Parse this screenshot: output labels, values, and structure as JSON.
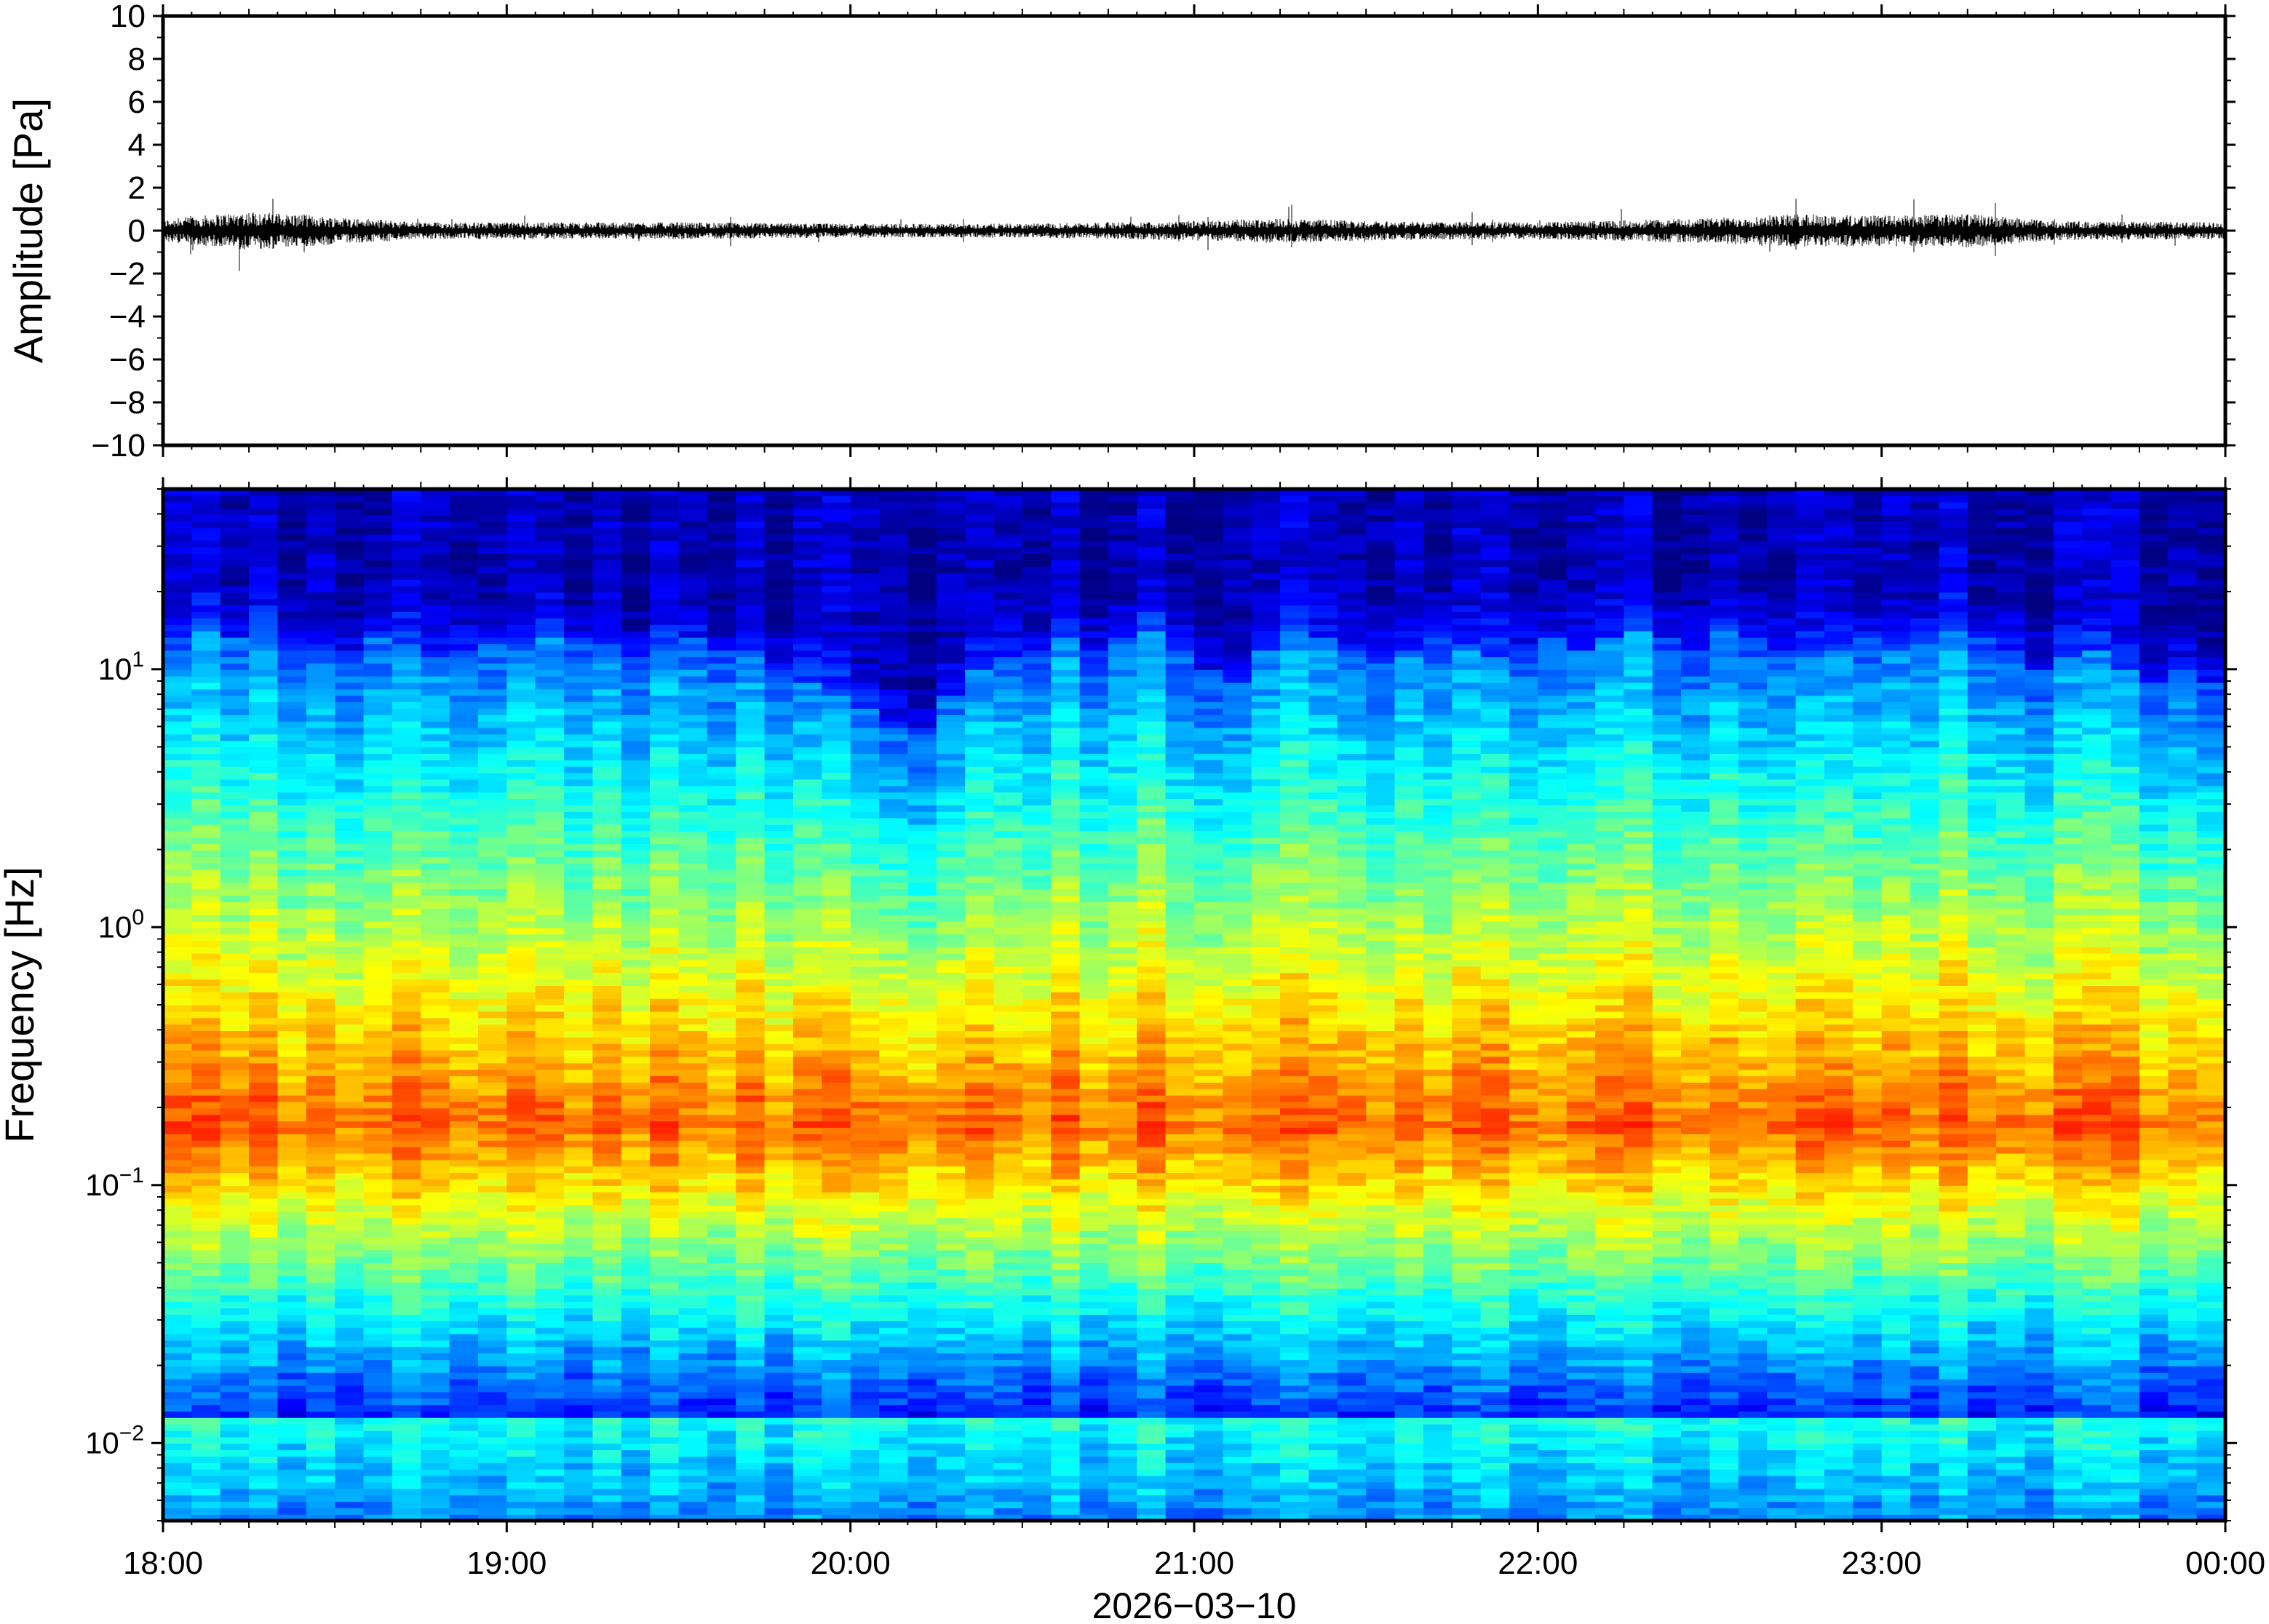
{
  "chart_data": [
    {
      "type": "line",
      "title": "",
      "ylabel": "Amplitude [Pa]",
      "xlabel": "",
      "ylim": [
        -10,
        10
      ],
      "yticks": [
        10,
        8,
        6,
        4,
        2,
        0,
        -2,
        -4,
        -6,
        -8,
        -10
      ],
      "ytick_labels": [
        "10",
        "8",
        "6",
        "4",
        "2",
        "0",
        "−2",
        "−4",
        "−6",
        "−8",
        "−10"
      ],
      "xlim": [
        "18:00",
        "00:00"
      ],
      "grid": false,
      "series": [
        {
          "color": "#000000",
          "x": [
            "18:00",
            "18:15",
            "18:30",
            "18:45",
            "19:00",
            "19:30",
            "20:00",
            "20:30",
            "21:00",
            "21:15",
            "21:30",
            "22:00",
            "22:30",
            "22:45",
            "23:00",
            "23:15",
            "23:30",
            "00:00"
          ],
          "envelope": [
            0.4,
            0.7,
            0.5,
            0.3,
            0.3,
            0.3,
            0.25,
            0.25,
            0.35,
            0.45,
            0.35,
            0.3,
            0.45,
            0.6,
            0.55,
            0.6,
            0.35,
            0.3
          ]
        }
      ]
    },
    {
      "type": "heatmap",
      "title": "",
      "ylabel": "Frequency [Hz]",
      "xlabel": "2026−03−10",
      "yscale": "log",
      "ylim": [
        0.005,
        50
      ],
      "yticks": [
        0.01,
        0.1,
        1,
        10
      ],
      "ytick_labels": [
        {
          "base": "10",
          "exp": "−2"
        },
        {
          "base": "10",
          "exp": "−1"
        },
        {
          "base": "10",
          "exp": "0"
        },
        {
          "base": "10",
          "exp": "1"
        }
      ],
      "xticks": [
        "18:00",
        "19:00",
        "20:00",
        "21:00",
        "22:00",
        "23:00",
        "00:00"
      ],
      "colormap": "jet",
      "colorbar": false,
      "time_columns": 72,
      "high_freq_cutoff_hz": [
        12,
        15,
        13,
        14,
        12,
        11,
        12,
        13,
        12,
        11,
        12,
        13,
        12,
        14,
        13,
        12,
        11,
        12,
        13,
        12,
        11,
        10,
        9,
        8,
        7,
        6,
        6,
        8,
        10,
        11,
        12,
        13,
        12,
        13,
        14,
        12,
        10,
        9,
        12,
        14,
        13,
        12,
        11,
        12,
        13,
        12,
        11,
        12,
        13,
        12,
        13,
        14,
        13,
        12,
        14,
        13,
        12,
        11,
        12,
        13,
        12,
        13,
        14,
        13,
        12,
        10,
        11,
        12,
        10,
        9,
        10,
        9
      ],
      "spectral_peak_hz": 0.17,
      "low_freq_band_hz": [
        0.005,
        0.015
      ]
    }
  ]
}
